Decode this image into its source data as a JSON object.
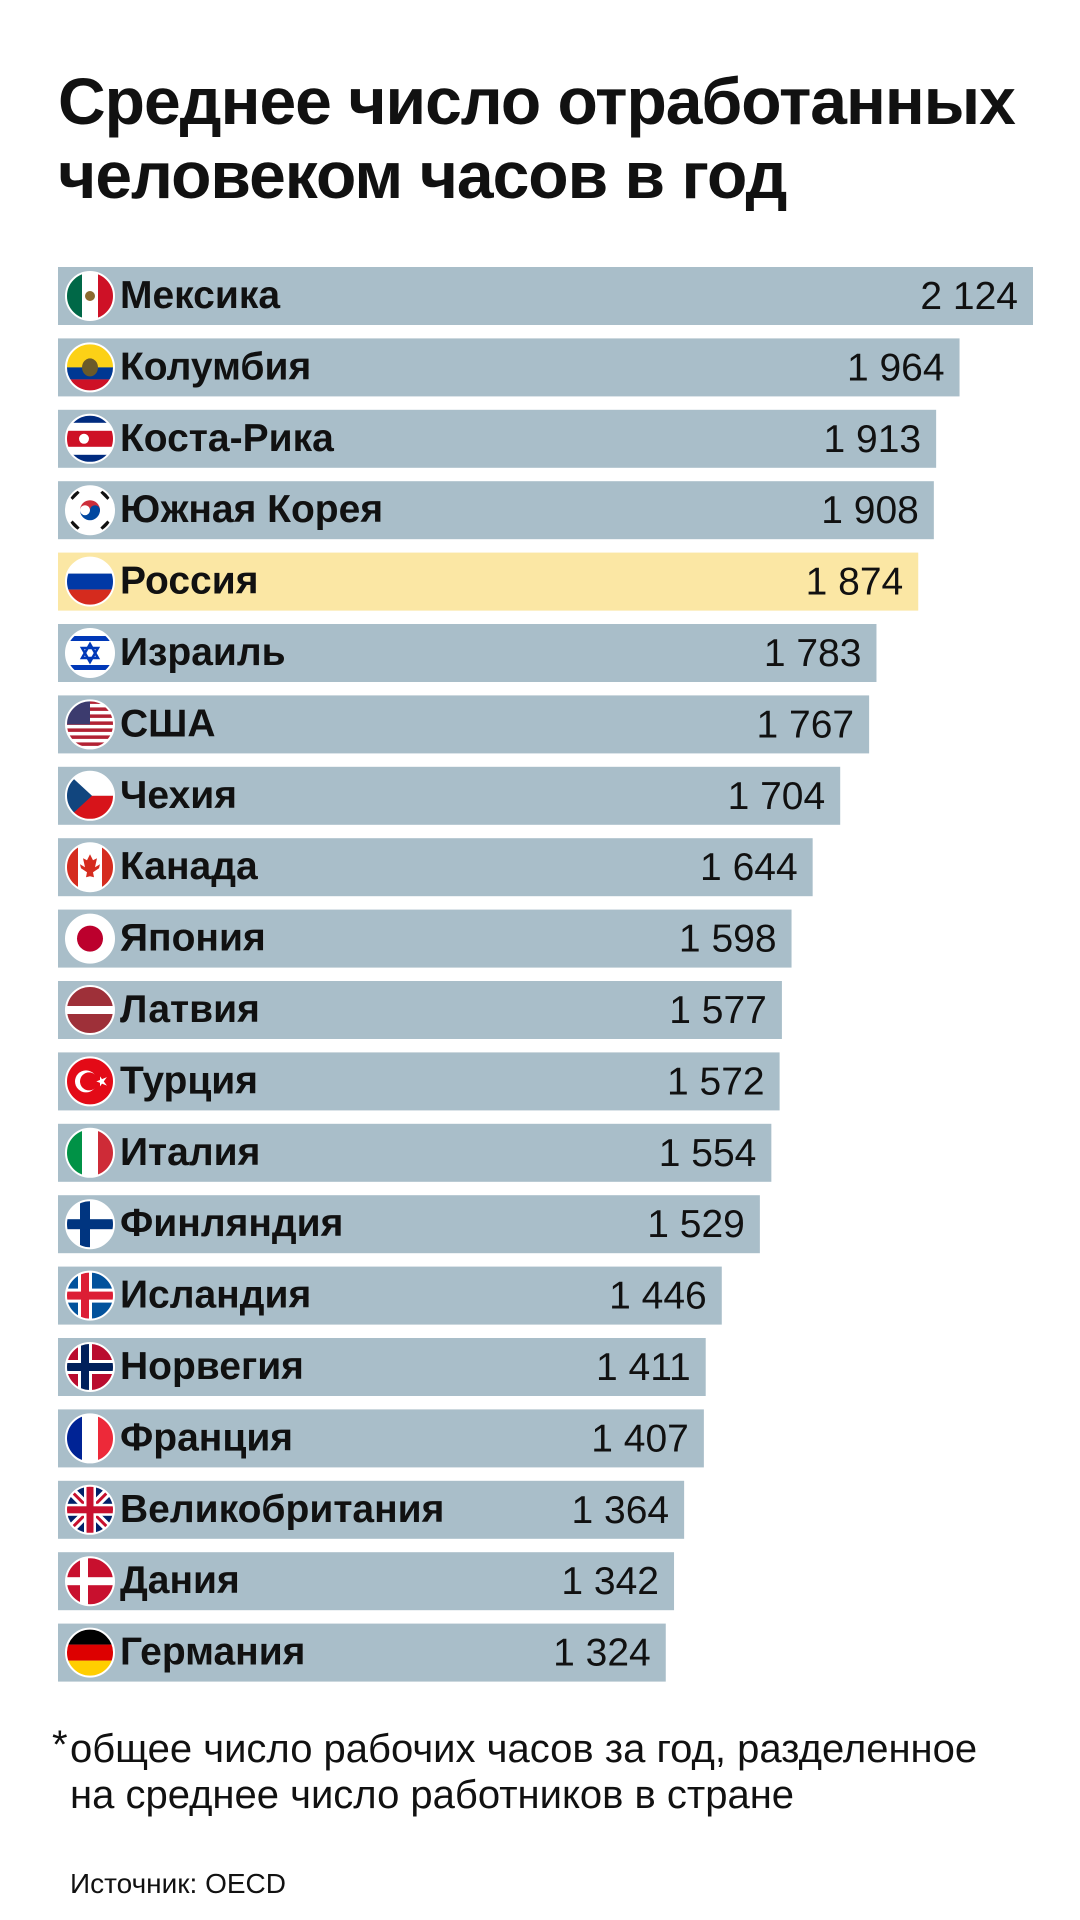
{
  "chart_data": {
    "type": "bar",
    "title": "Среднее число отработанных человеком часов в год",
    "categories": [
      "Мексика",
      "Колумбия",
      "Коста-Рика",
      "Южная Корея",
      "Россия",
      "Израиль",
      "США",
      "Чехия",
      "Канада",
      "Япония",
      "Латвия",
      "Турция",
      "Италия",
      "Финляндия",
      "Исландия",
      "Норвегия",
      "Франция",
      "Великобритания",
      "Дания",
      "Германия"
    ],
    "values": [
      2124,
      1964,
      1913,
      1908,
      1874,
      1783,
      1767,
      1704,
      1644,
      1598,
      1577,
      1572,
      1554,
      1529,
      1446,
      1411,
      1407,
      1364,
      1342,
      1324
    ],
    "value_labels": [
      "2 124",
      "1 964",
      "1 913",
      "1 908",
      "1 874",
      "1 783",
      "1 767",
      "1 704",
      "1 644",
      "1 598",
      "1 577",
      "1 572",
      "1 554",
      "1 529",
      "1 446",
      "1 411",
      "1 407",
      "1 364",
      "1 342",
      "1 324"
    ],
    "highlight": "Россия",
    "orientation": "horizontal",
    "xlim": [
      0,
      2124
    ],
    "colors": {
      "bar": "#a9bec9",
      "highlight": "#fbe7a4"
    },
    "flags": [
      "mexico-flag-icon",
      "colombia-flag-icon",
      "costa-rica-flag-icon",
      "south-korea-flag-icon",
      "russia-flag-icon",
      "israel-flag-icon",
      "usa-flag-icon",
      "czechia-flag-icon",
      "canada-flag-icon",
      "japan-flag-icon",
      "latvia-flag-icon",
      "turkey-flag-icon",
      "italy-flag-icon",
      "finland-flag-icon",
      "iceland-flag-icon",
      "norway-flag-icon",
      "france-flag-icon",
      "uk-flag-icon",
      "denmark-flag-icon",
      "germany-flag-icon"
    ]
  },
  "footnote": {
    "marker": "*",
    "line1": "общее число рабочих часов за год, разделенное",
    "line2": "на среднее число работников в стране"
  },
  "source": "Источник: OECD"
}
